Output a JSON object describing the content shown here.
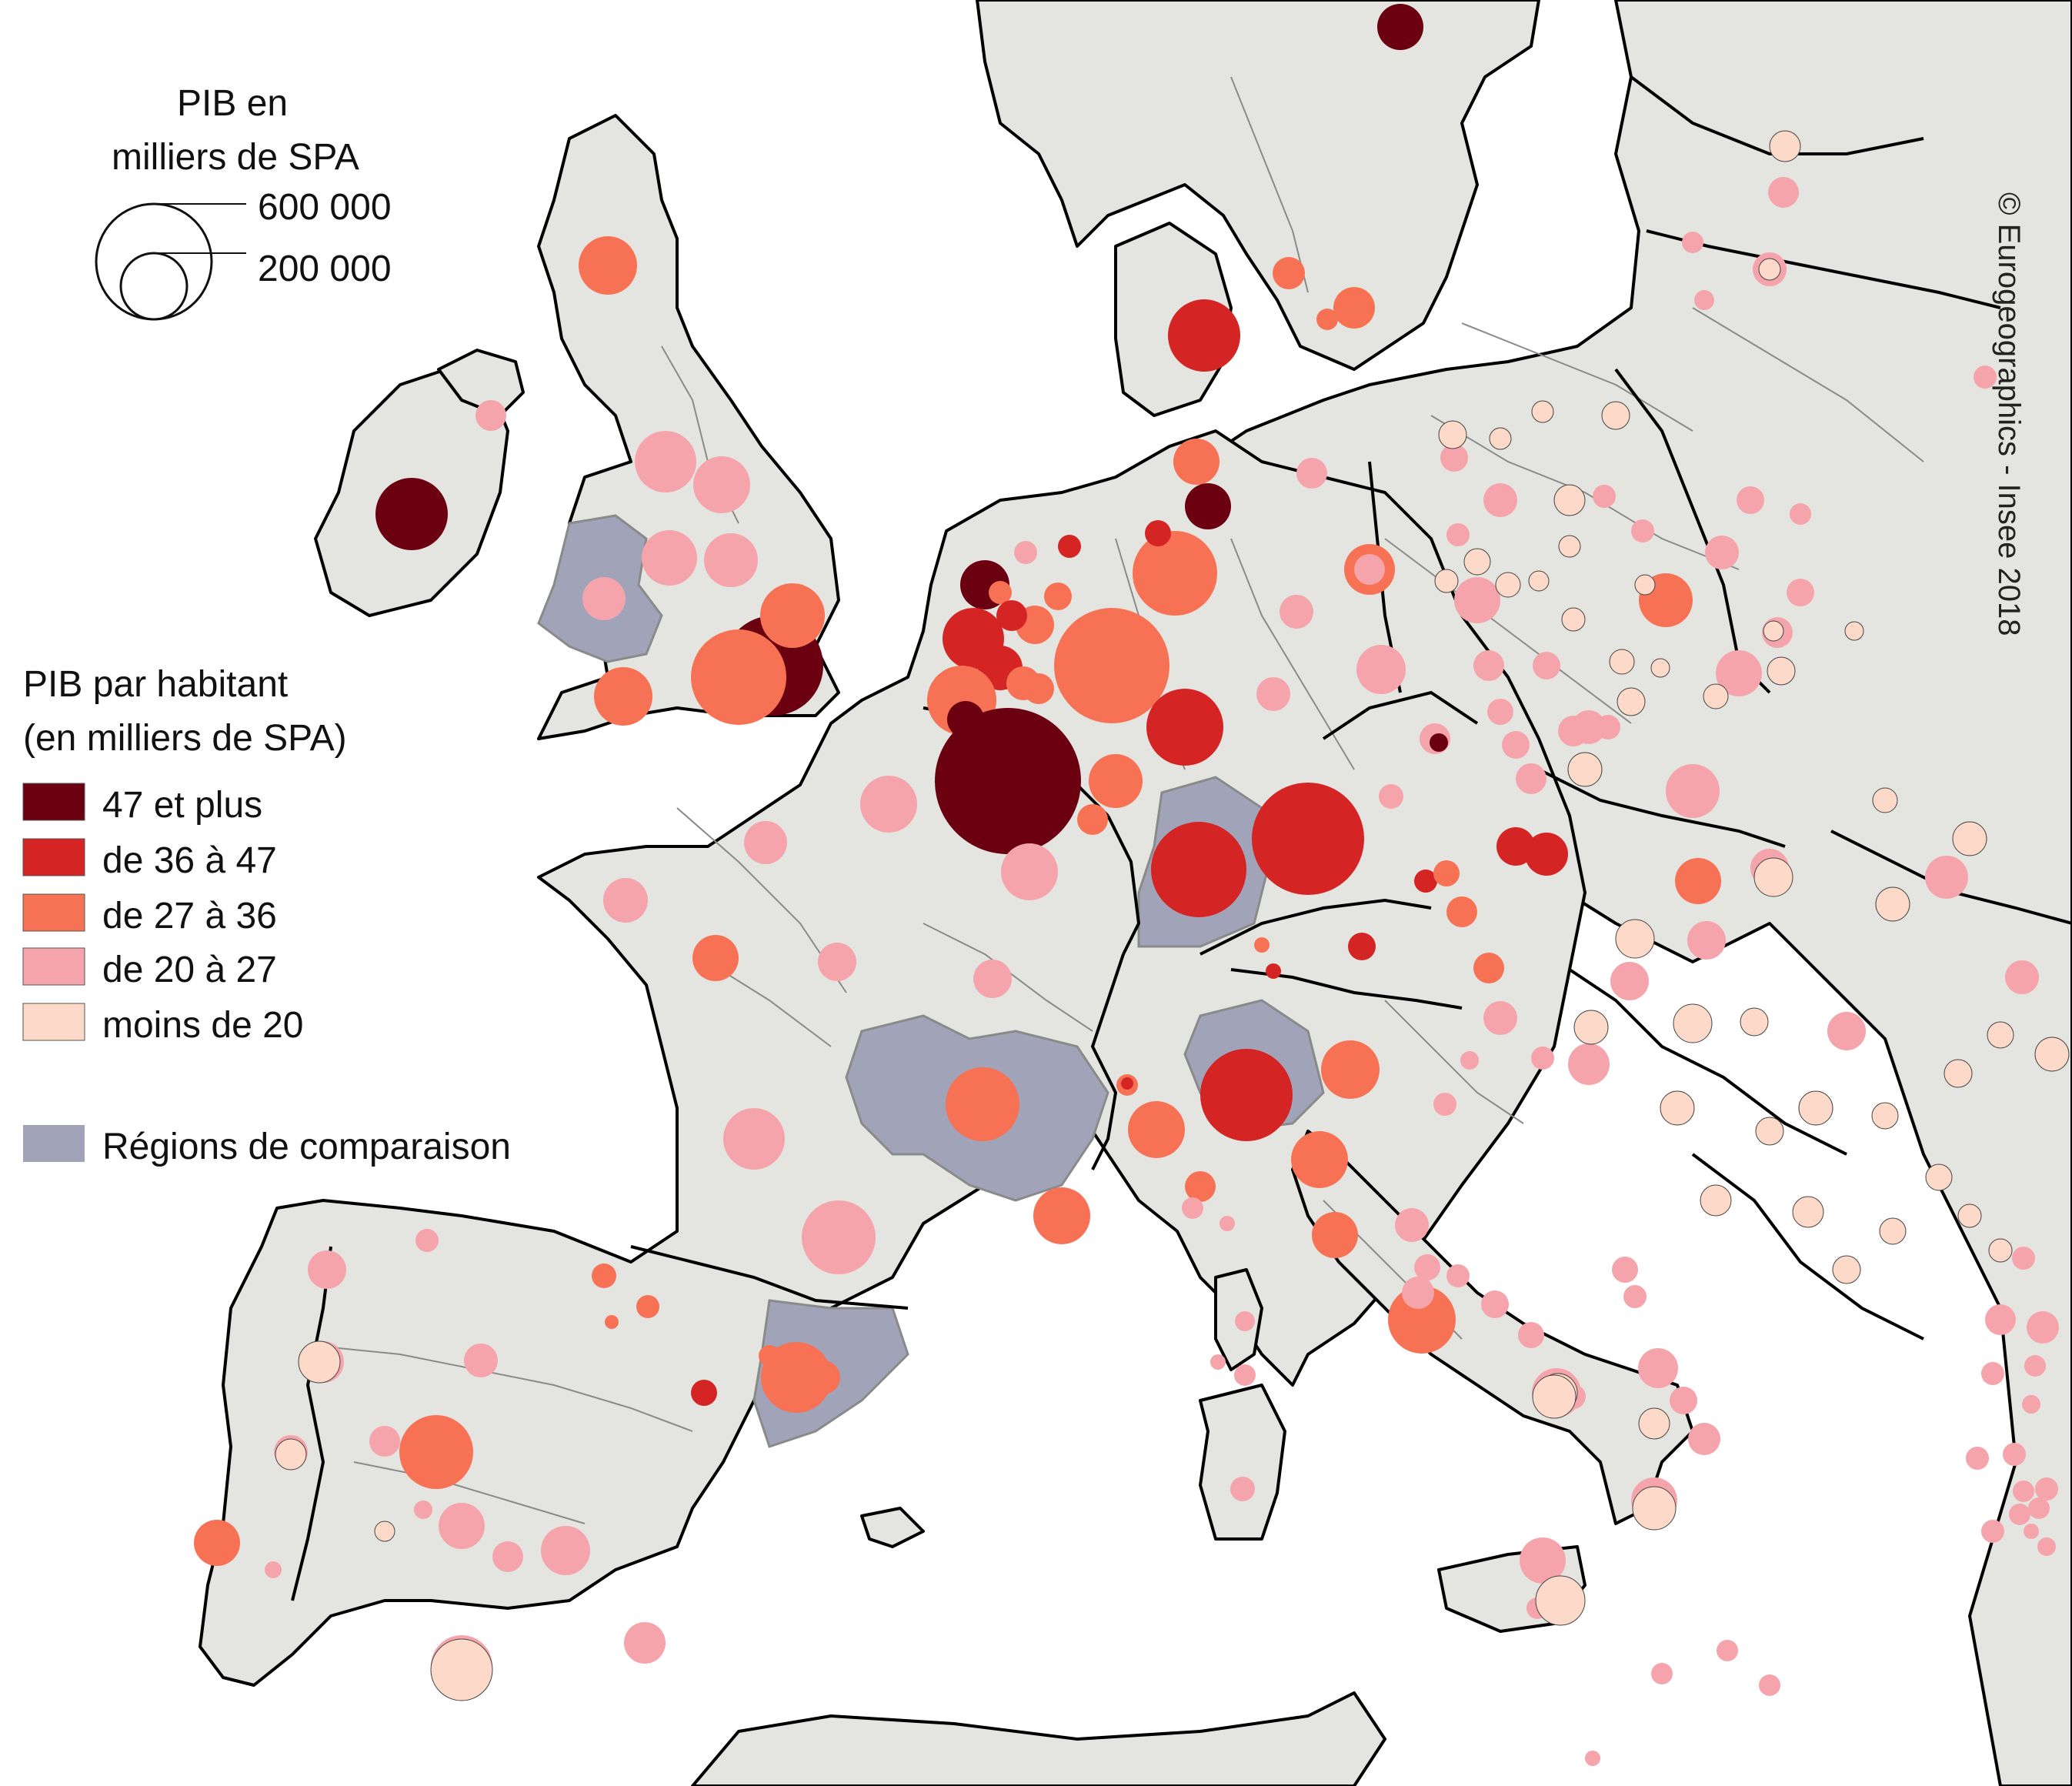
{
  "size_legend": {
    "title_line1": "PIB en",
    "title_line2": "milliers de SPA",
    "large_label": "600 000",
    "small_label": "200 000",
    "large_value": 600000,
    "small_value": 200000
  },
  "color_legend": {
    "title_line1": "PIB par habitant",
    "title_line2": "(en milliers de SPA)",
    "classes": [
      {
        "label": "47 et plus",
        "color": "#6b0010"
      },
      {
        "label": "de 36 à 47",
        "color": "#d42424"
      },
      {
        "label": "de 27 à 36",
        "color": "#f77255"
      },
      {
        "label": "de 20 à 27",
        "color": "#f6a4ab"
      },
      {
        "label": "moins de 20",
        "color": "#fcd9c8"
      }
    ],
    "comparison_label": "Régions de comparaison",
    "comparison_color": "#a1a3b8"
  },
  "credit": "© Eurogeographics - Insee 2018",
  "colors": {
    "land": "#e4e4e0",
    "sea": "#ffffff",
    "border_country": "#000000",
    "border_region": "#8a8a8a"
  }
}
